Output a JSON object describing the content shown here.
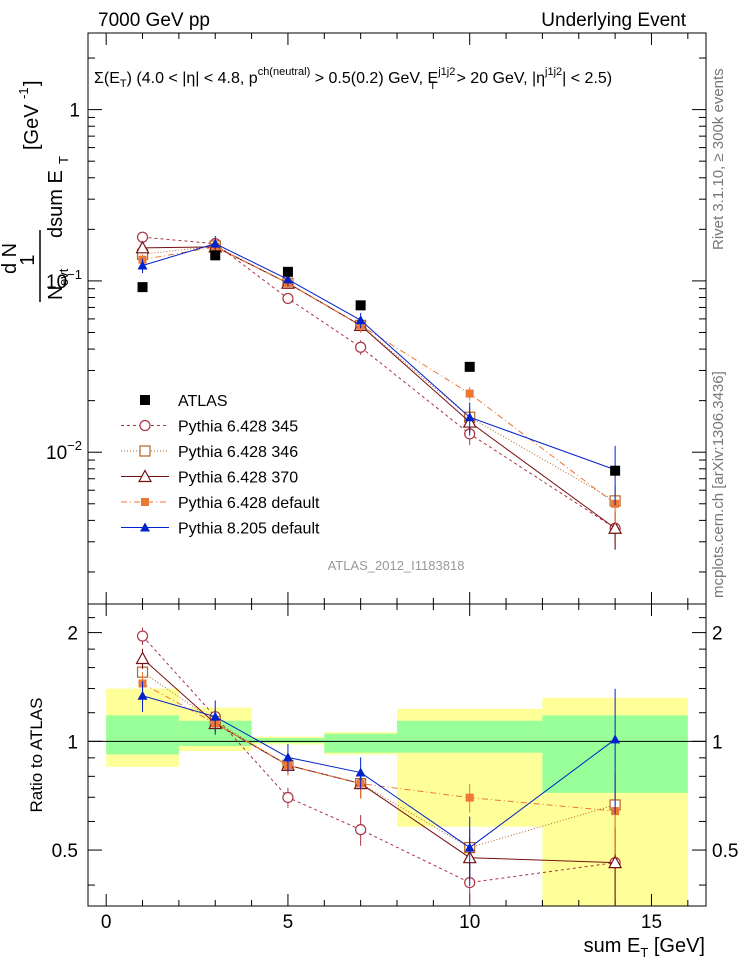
{
  "header": {
    "left": "7000 GeV pp",
    "right": "Underlying Event"
  },
  "side_labels": {
    "rivet": "Rivet 3.1.10, ≥ 300k events",
    "mcplots": "mcplots.cern.ch [arXiv:1306.3436]"
  },
  "watermark": "ATLAS_2012_I1183818",
  "chart_data": {
    "type": "scatter",
    "title": "Σ(E_T) (4.0 < |η| < 4.8, p^ch(neutral) > 0.5(0.2) GeV, E_T^j1j2 > 20 GeV, |η^j1j2| < 2.5)",
    "title_parts": {
      "sigma": "Σ(E",
      "sub_T": "T",
      "mid": ") (4.0 < |η| < 4.8, p",
      "sup_ch": "ch(neutral)",
      "mid2": " > 0.5(0.2) GeV, E",
      "sup_j": "j1j2",
      "sub_T2": "T",
      "mid3": " > 20 GeV, |η",
      "sup_j2": "j1j2",
      "end": "| < 2.5)"
    },
    "xlabel": "sum E_T [GeV]",
    "xlabel_parts": {
      "main": "sum E",
      "sub": "T",
      "unit": " [GeV]"
    },
    "ylabel": "1/N_evt dN_evt/dsum E_T [GeV^-1]",
    "ylabel_parts": {
      "one": "1",
      "n": "N",
      "evt": "evt",
      "dn": "d N",
      "dsum": "dsum E",
      "T": "T",
      "unit": "[GeV",
      "exp": "-1",
      "close": "]"
    },
    "ratio_ylabel": "Ratio to ATLAS",
    "xlim": [
      -0.5,
      16.5
    ],
    "ylim": [
      0.0013,
      2.8
    ],
    "yscale": "log",
    "ratio_ylim": [
      0.35,
      2.4
    ],
    "ratio_yscale": "log",
    "x_ticks": [
      0,
      5,
      10,
      15
    ],
    "x_tick_labels": [
      "0",
      "5",
      "10",
      "15"
    ],
    "y_tick_labels": {
      "1": "1",
      "0.1": "10",
      "0.01": "10"
    },
    "y_tick_exps": {
      "0.1": "−1",
      "0.01": "−2"
    },
    "ratio_ticks": [
      0.5,
      1,
      2
    ],
    "ratio_tick_labels": [
      "0.5",
      "1",
      "2"
    ],
    "bin_edges": [
      0,
      2,
      4,
      6,
      8,
      12,
      16
    ],
    "bin_centers": [
      1,
      3,
      5,
      7,
      10,
      14
    ],
    "data": {
      "name": "ATLAS",
      "color": "#000000",
      "values": [
        0.092,
        0.141,
        0.113,
        0.072,
        0.0315,
        0.0078
      ]
    },
    "uncertainty_bands": {
      "green_color": "#99ff99",
      "yellow_color": "#ffff99",
      "green": [
        [
          0.92,
          1.18
        ],
        [
          0.97,
          1.14
        ],
        [
          0.99,
          1.02
        ],
        [
          0.93,
          1.05
        ],
        [
          0.93,
          1.14
        ],
        [
          0.72,
          1.18
        ]
      ],
      "yellow": [
        [
          0.85,
          1.4
        ],
        [
          0.94,
          1.24
        ],
        [
          0.98,
          1.03
        ],
        [
          0.92,
          1.06
        ],
        [
          0.58,
          1.23
        ],
        [
          0.35,
          1.32
        ]
      ]
    },
    "series": [
      {
        "name": "Pythia 6.428 345",
        "color": "#aa3344",
        "marker": "open-circle",
        "dash": "3,3",
        "values": [
          0.18,
          0.165,
          0.079,
          0.041,
          0.0128,
          0.0036
        ],
        "errors": [
          0.01,
          0.008,
          0.005,
          0.004,
          0.0018,
          0.0009
        ]
      },
      {
        "name": "Pythia 6.428 346",
        "color": "#b36622",
        "marker": "open-square",
        "dash": "1,2",
        "values": [
          0.143,
          0.16,
          0.097,
          0.055,
          0.016,
          0.0052
        ],
        "errors": [
          0.01,
          0.008,
          0.006,
          0.005,
          0.002,
          0.0012
        ]
      },
      {
        "name": "Pythia 6.428 370",
        "color": "#771111",
        "marker": "open-triangle",
        "dash": "",
        "values": [
          0.156,
          0.158,
          0.097,
          0.055,
          0.015,
          0.0036
        ],
        "errors": [
          0.01,
          0.008,
          0.006,
          0.005,
          0.002,
          0.0009
        ]
      },
      {
        "name": "Pythia 6.428 default",
        "color": "#ee7733",
        "marker": "filled-square",
        "dash": "6,3,1,3",
        "values": [
          0.133,
          0.158,
          0.097,
          0.055,
          0.022,
          0.005
        ],
        "errors": [
          0.01,
          0.008,
          0.006,
          0.005,
          0.002,
          0.0012
        ]
      },
      {
        "name": "Pythia 8.205 default",
        "color": "#0022cc",
        "marker": "filled-triangle",
        "dash": "",
        "values": [
          0.123,
          0.165,
          0.102,
          0.059,
          0.016,
          0.0079
        ],
        "errors": [
          0.012,
          0.018,
          0.009,
          0.006,
          0.0035,
          0.003
        ]
      }
    ]
  }
}
